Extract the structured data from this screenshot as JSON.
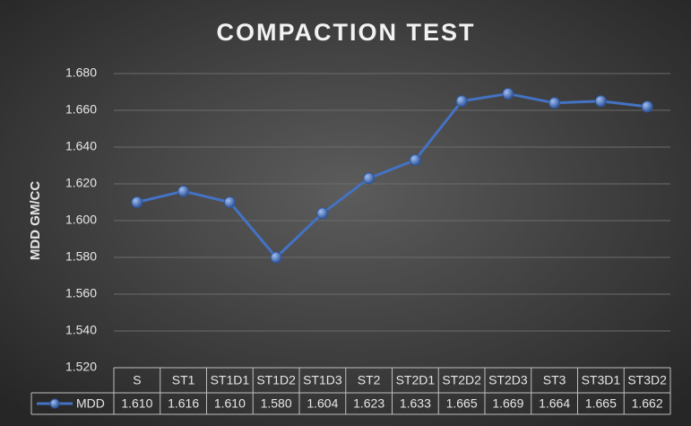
{
  "chart_data": {
    "type": "line",
    "title": "COMPACTION TEST",
    "y_label": "MDD GM/CC",
    "categories": [
      "S",
      "ST1",
      "ST1D1",
      "ST1D2",
      "ST1D3",
      "ST2",
      "ST2D1",
      "ST2D2",
      "ST2D3",
      "ST3",
      "ST3D1",
      "ST3D2"
    ],
    "series": [
      {
        "name": "MDD",
        "color": "#4472c4",
        "values": [
          1.61,
          1.616,
          1.61,
          1.58,
          1.604,
          1.623,
          1.633,
          1.665,
          1.669,
          1.664,
          1.665,
          1.662
        ],
        "value_labels": [
          "1.610",
          "1.616",
          "1.610",
          "1.580",
          "1.604",
          "1.623",
          "1.633",
          "1.665",
          "1.669",
          "1.664",
          "1.665",
          "1.662"
        ]
      }
    ],
    "ylim": [
      1.52,
      1.68
    ],
    "yticks": [
      {
        "value": 1.52,
        "label": "1.520"
      },
      {
        "value": 1.54,
        "label": "1.540"
      },
      {
        "value": 1.56,
        "label": "1.560"
      },
      {
        "value": 1.58,
        "label": "1.580"
      },
      {
        "value": 1.6,
        "label": "1.600"
      },
      {
        "value": 1.62,
        "label": "1.620"
      },
      {
        "value": 1.64,
        "label": "1.640"
      },
      {
        "value": 1.66,
        "label": "1.660"
      },
      {
        "value": 1.68,
        "label": "1.680"
      }
    ],
    "grid": true,
    "data_table": true
  }
}
